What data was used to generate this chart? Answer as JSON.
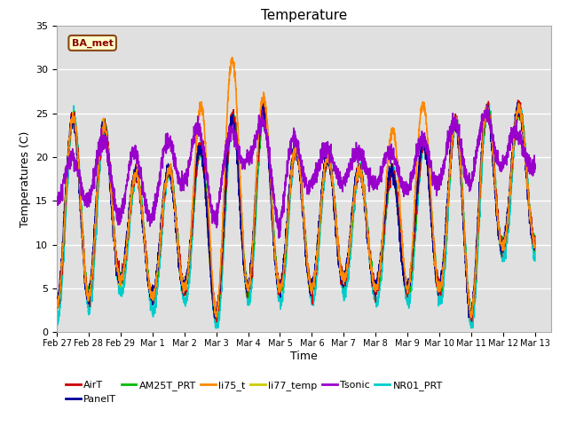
{
  "title": "Temperature",
  "xlabel": "Time",
  "ylabel": "Temperatures (C)",
  "ylim": [
    0,
    35
  ],
  "background_color": "#ffffff",
  "plot_bg_color": "#e0e0e0",
  "grid_color": "#ffffff",
  "series": {
    "AirT": {
      "color": "#cc0000",
      "lw": 1.0,
      "zorder": 4
    },
    "PanelT": {
      "color": "#000099",
      "lw": 1.0,
      "zorder": 5
    },
    "AM25T_PRT": {
      "color": "#00bb00",
      "lw": 1.0,
      "zorder": 3
    },
    "li75_t": {
      "color": "#ff8800",
      "lw": 1.2,
      "zorder": 6
    },
    "li77_temp": {
      "color": "#cccc00",
      "lw": 1.2,
      "zorder": 2
    },
    "Tsonic": {
      "color": "#9900cc",
      "lw": 1.2,
      "zorder": 7
    },
    "NR01_PRT": {
      "color": "#00cccc",
      "lw": 1.2,
      "zorder": 1
    }
  },
  "legend_order": [
    "AirT",
    "PanelT",
    "AM25T_PRT",
    "li75_t",
    "li77_temp",
    "Tsonic",
    "NR01_PRT"
  ],
  "annotation_text": "BA_met",
  "x_tick_labels": [
    "Feb 27",
    "Feb 28",
    "Feb 29",
    "Mar 1",
    "Mar 2",
    "Mar 3",
    "Mar 4",
    "Mar 5",
    "Mar 6",
    "Mar 7",
    "Mar 8",
    "Mar 9",
    "Mar 10",
    "Mar 11",
    "Mar 12",
    "Mar 13"
  ],
  "x_tick_positions": [
    -2,
    -1,
    0,
    1,
    2,
    3,
    4,
    5,
    6,
    7,
    8,
    9,
    10,
    11,
    12,
    13
  ],
  "day_peaks": [
    22,
    27,
    20,
    16,
    21,
    21,
    28,
    22,
    20,
    20,
    17,
    20,
    23,
    25,
    26,
    25
  ],
  "day_troughs": [
    3,
    4,
    6,
    4,
    5,
    2,
    5,
    5,
    5,
    6,
    5,
    5,
    5,
    2,
    10,
    10
  ],
  "tsonic_peaks": [
    18,
    22,
    22,
    19,
    25,
    21,
    25,
    23,
    21,
    21,
    20,
    21,
    23,
    25,
    25,
    20
  ],
  "tsonic_trough": [
    15,
    15,
    13,
    13,
    17,
    13,
    20,
    12,
    17,
    17,
    17,
    16,
    17,
    17,
    19,
    19
  ]
}
